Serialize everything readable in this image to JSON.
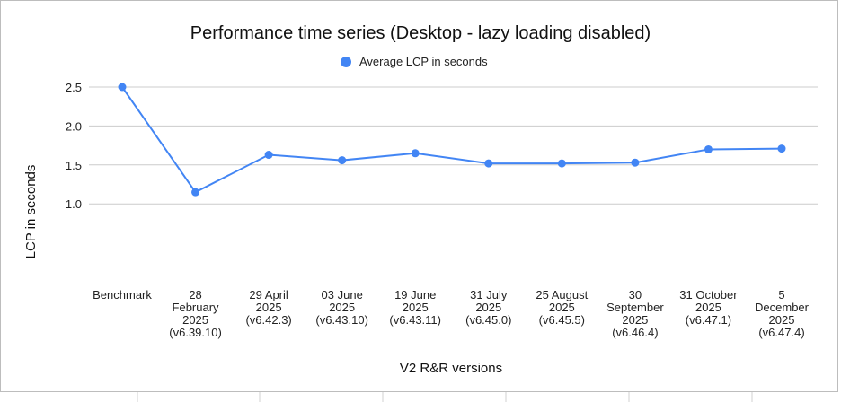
{
  "chart_data": {
    "type": "line",
    "title": "Performance time series (Desktop - lazy loading disabled)",
    "xlabel": "V2 R&R versions",
    "ylabel": "LCP in seconds",
    "legend_position": "top",
    "grid": true,
    "ylim": [
      0,
      2.5
    ],
    "y_ticks": [
      "1.0",
      "1.5",
      "2.0",
      "2.5"
    ],
    "categories": [
      [
        "Benchmark"
      ],
      [
        "28",
        "February",
        "2025",
        "(v6.39.10)"
      ],
      [
        "29 April",
        "2025",
        "(v6.42.3)"
      ],
      [
        "03 June",
        "2025",
        "(v6.43.10)"
      ],
      [
        "19 June",
        "2025",
        "(v6.43.11)"
      ],
      [
        "31 July",
        "2025",
        "(v6.45.0)"
      ],
      [
        "25 August",
        "2025",
        "(v6.45.5)"
      ],
      [
        "30",
        "September",
        "2025",
        "(v6.46.4)"
      ],
      [
        "31 October",
        "2025",
        "(v6.47.1)"
      ],
      [
        "5",
        "December",
        "2025",
        "(v6.47.4)"
      ]
    ],
    "series": [
      {
        "name": "Average LCP in seconds",
        "color": "#4285f4",
        "values": [
          2.5,
          1.15,
          1.63,
          1.56,
          1.65,
          1.52,
          1.52,
          1.53,
          1.7,
          1.71
        ]
      }
    ]
  }
}
